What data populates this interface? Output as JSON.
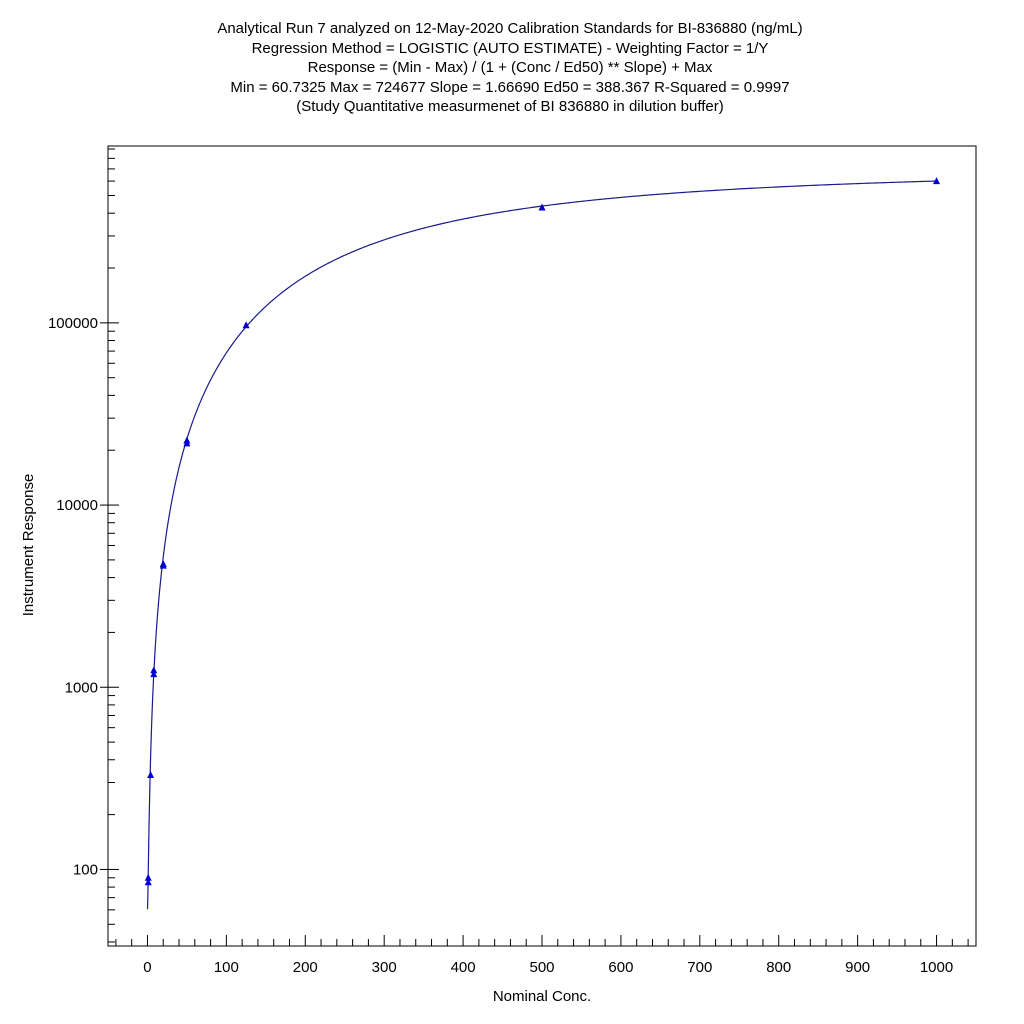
{
  "chart_data": {
    "type": "scatter",
    "title_lines": [
      "Analytical Run 7 analyzed on 12-May-2020 Calibration Standards for BI-836880 (ng/mL)",
      "Regression Method = LOGISTIC (AUTO ESTIMATE) - Weighting Factor = 1/Y",
      "Response = (Min - Max) / (1 + (Conc / Ed50) ** Slope) + Max",
      "Min = 60.7325 Max = 724677 Slope = 1.66690 Ed50 = 388.367 R-Squared = 0.9997",
      "(Study Quantitative measurmenet of BI 836880 in dilution buffer)"
    ],
    "xlabel": "Nominal Conc.",
    "ylabel": "Instrument Response",
    "xlim": [
      -50,
      1050
    ],
    "ylim": [
      38,
      935000
    ],
    "yscale": "log",
    "x_ticks": [
      0,
      100,
      200,
      300,
      400,
      500,
      600,
      700,
      800,
      900,
      1000
    ],
    "x_tick_labels": [
      "0",
      "100",
      "200",
      "300",
      "400",
      "500",
      "600",
      "700",
      "800",
      "900",
      "1000"
    ],
    "y_ticks": [
      100,
      1000,
      10000,
      100000
    ],
    "y_tick_labels": [
      "100",
      "1000",
      "10000",
      "100000"
    ],
    "fit": {
      "model": "logistic",
      "min": 60.7325,
      "max": 724677,
      "slope": 1.6669,
      "ed50": 388.367,
      "r_squared": 0.9997
    },
    "points": {
      "x": [
        1,
        1,
        4,
        8,
        8,
        20,
        20,
        50,
        50,
        125,
        500,
        1000
      ],
      "y": [
        85,
        90,
        330,
        1180,
        1240,
        4650,
        4750,
        21800,
        22600,
        97000,
        430000,
        600000
      ]
    },
    "colors": {
      "curve": "#1a1a8c",
      "marker": "#0000d0",
      "axis": "#000000"
    },
    "grid": false
  }
}
